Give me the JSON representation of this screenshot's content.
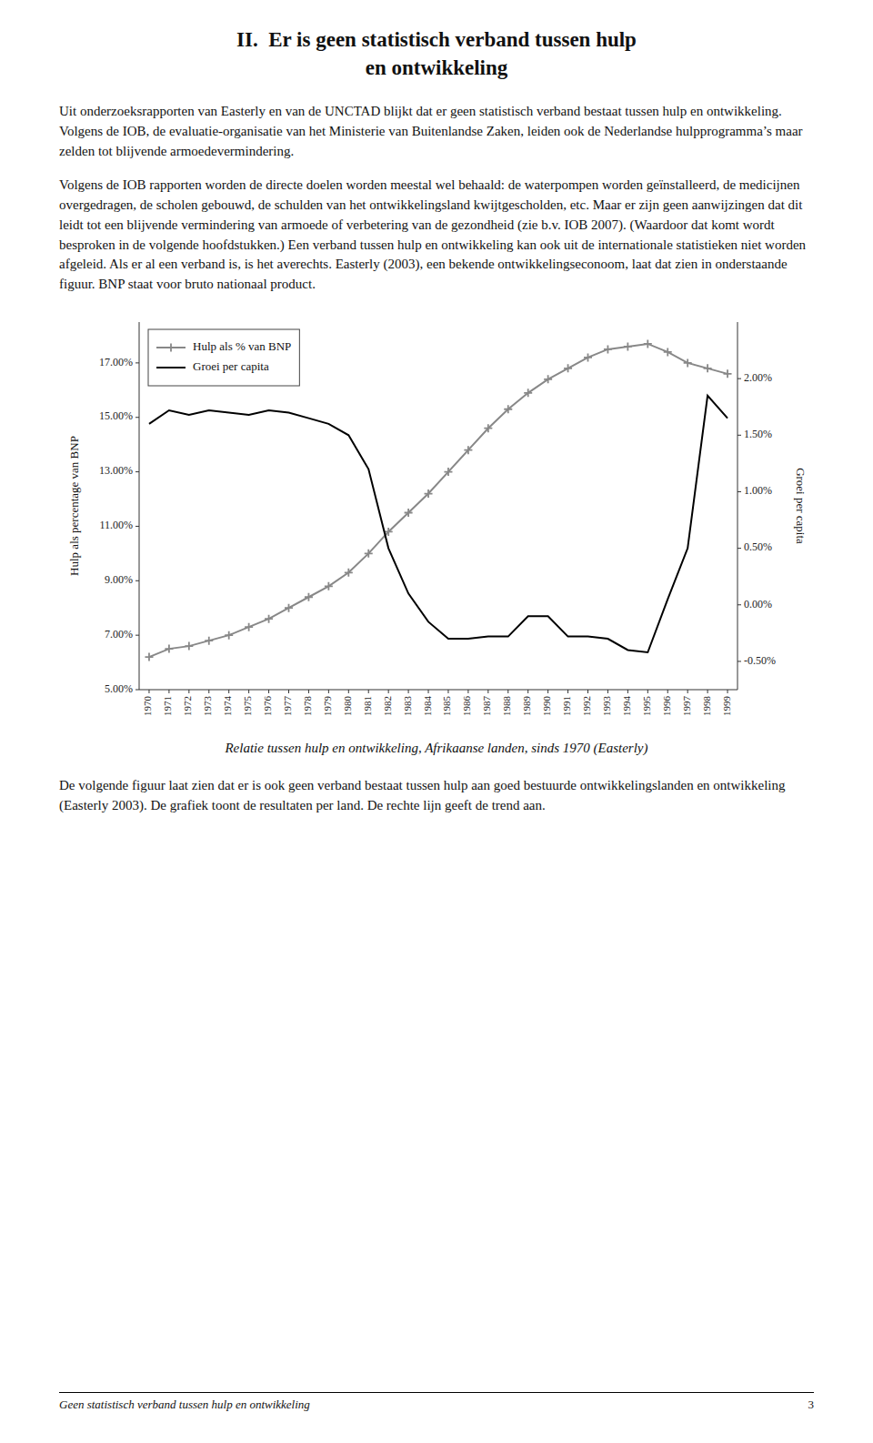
{
  "page": {
    "heading": "II.  Er is geen statistisch verband tussen hulp\nen ontwikkeling",
    "paragraphs": [
      "Uit onderzoeksrapporten van Easterly en van de UNCTAD blijkt dat er geen statistisch verband bestaat tussen hulp en ontwikkeling. Volgens de IOB, de evaluatie-organisatie van het Ministerie van Buitenlandse Zaken, leiden ook de Nederlandse hulpprogramma’s maar zelden tot blijvende armoedevermindering.",
      "Volgens de IOB rapporten worden de directe doelen worden meestal wel behaald: de waterpompen worden geïnstalleerd, de medicijnen overgedragen, de scholen gebouwd, de schulden van het ontwikkelingsland kwijtgescholden, etc. Maar er zijn geen aanwijzingen dat dit leidt tot een blijvende vermindering van armoede of verbetering van de gezondheid (zie b.v. IOB 2007). (Waardoor dat komt wordt besproken in de volgende hoofdstukken.) Een verband tussen hulp en ontwikkeling kan ook uit de internationale statistieken niet worden afgeleid. Als er al een verband is, is het averechts. Easterly (2003), een bekende ontwikkelingseconoom, laat dat zien in onderstaande figuur. BNP staat voor bruto nationaal product.",
      "De volgende figuur laat zien dat er is ook geen verband bestaat tussen hulp aan goed bestuurde ontwikkelingslanden en ontwikkeling (Easterly 2003). De grafiek toont de resultaten per land. De rechte lijn geeft de trend aan."
    ],
    "footer": "Geen statistisch verband tussen hulp en ontwikkeling",
    "page_number": "3"
  },
  "chart_data": {
    "type": "line",
    "title": "Relatie tussen hulp en ontwikkeling, Afrikaanse landen, sinds 1970 (Easterly)",
    "x": [
      1970,
      1971,
      1972,
      1973,
      1974,
      1975,
      1976,
      1977,
      1978,
      1979,
      1980,
      1981,
      1982,
      1983,
      1984,
      1985,
      1986,
      1987,
      1988,
      1989,
      1990,
      1991,
      1992,
      1993,
      1994,
      1995,
      1996,
      1997,
      1998,
      1999
    ],
    "xlim": [
      1969.5,
      1999.5
    ],
    "xticks": [
      1970,
      1971,
      1972,
      1973,
      1974,
      1975,
      1976,
      1977,
      1978,
      1979,
      1980,
      1981,
      1982,
      1983,
      1984,
      1985,
      1986,
      1987,
      1988,
      1989,
      1990,
      1991,
      1992,
      1993,
      1994,
      1995,
      1996,
      1997,
      1998,
      1999
    ],
    "ylabel": "Hulp als percentage van BNP",
    "y2label": "Groei per capita",
    "ylim": [
      5.0,
      18.5
    ],
    "yticks": [
      {
        "value": 5.0,
        "label": "5.00%"
      },
      {
        "value": 7.0,
        "label": "7.00%"
      },
      {
        "value": 9.0,
        "label": "9.00%"
      },
      {
        "value": 11.0,
        "label": "11.00%"
      },
      {
        "value": 13.0,
        "label": "13.00%"
      },
      {
        "value": 15.0,
        "label": "15.00%"
      },
      {
        "value": 17.0,
        "label": "17.00%"
      }
    ],
    "y2lim": [
      -0.75,
      2.5
    ],
    "y2ticks": [
      {
        "value": -0.5,
        "label": "-0.50%"
      },
      {
        "value": 0.0,
        "label": "0.00%"
      },
      {
        "value": 0.5,
        "label": "0.50%"
      },
      {
        "value": 1.0,
        "label": "1.00%"
      },
      {
        "value": 1.5,
        "label": "1.50%"
      },
      {
        "value": 2.0,
        "label": "2.00%"
      }
    ],
    "series": [
      {
        "name": "Hulp als % van BNP",
        "color": "#888888",
        "marker": "plus",
        "values": [
          6.2,
          6.5,
          6.6,
          6.8,
          7.0,
          7.3,
          7.6,
          8.0,
          8.4,
          8.8,
          9.3,
          10.0,
          10.8,
          11.5,
          12.2,
          13.0,
          13.8,
          14.6,
          15.3,
          15.9,
          16.4,
          16.8,
          17.2,
          17.5,
          17.6,
          17.7,
          17.4,
          17.0,
          16.8,
          16.6
        ]
      },
      {
        "name": "Groei per capita",
        "color": "#000000",
        "axis": "y2",
        "values": [
          1.6,
          1.72,
          1.68,
          1.72,
          1.7,
          1.68,
          1.72,
          1.7,
          1.65,
          1.6,
          1.5,
          1.2,
          0.5,
          0.1,
          -0.15,
          -0.3,
          -0.3,
          -0.28,
          -0.28,
          -0.1,
          -0.1,
          -0.28,
          -0.28,
          -0.3,
          -0.4,
          -0.42,
          0.05,
          0.5,
          1.85,
          1.65
        ]
      }
    ],
    "grid": false,
    "legend": "upper left"
  }
}
